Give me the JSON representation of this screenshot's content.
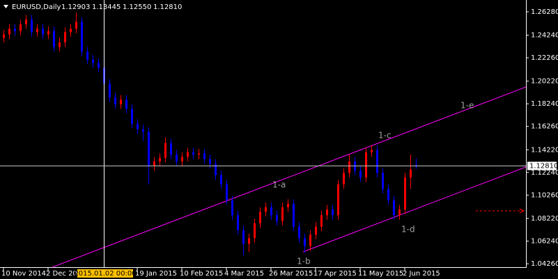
{
  "chart_data": {
    "type": "candlestick",
    "symbol": "EURUSD,Daily",
    "header_values": [
      "1.12903",
      "1.13445",
      "1.12550",
      "1.12810"
    ],
    "up_color": "#ff0000",
    "down_color": "#0000ff",
    "open": [
      1.24,
      1.243,
      1.248,
      1.246,
      1.252,
      1.256,
      1.245,
      1.248,
      1.243,
      1.246,
      1.232,
      1.236,
      1.245,
      1.248,
      1.254,
      1.228,
      1.221,
      1.218,
      1.214,
      1.2,
      1.188,
      1.182,
      1.186,
      1.178,
      1.165,
      1.16,
      1.158,
      1.128,
      1.132,
      1.135,
      1.148,
      1.138,
      1.132,
      1.136,
      1.14,
      1.138,
      1.139,
      1.134,
      1.13,
      1.12,
      1.112,
      1.098,
      1.085,
      1.072,
      1.06,
      1.065,
      1.078,
      1.088,
      1.092,
      1.085,
      1.08,
      1.092,
      1.095,
      1.075,
      1.065,
      1.058,
      1.068,
      1.075,
      1.085,
      1.09,
      1.085,
      1.112,
      1.122,
      1.132,
      1.124,
      1.118,
      1.14,
      1.142,
      1.122,
      1.108,
      1.098,
      1.085,
      1.09,
      1.118,
      1.12903
    ],
    "high": [
      1.247,
      1.252,
      1.252,
      1.256,
      1.26,
      1.26,
      1.252,
      1.252,
      1.25,
      1.25,
      1.24,
      1.249,
      1.252,
      1.262,
      1.258,
      1.232,
      1.225,
      1.222,
      1.218,
      1.204,
      1.192,
      1.19,
      1.19,
      1.182,
      1.169,
      1.164,
      1.162,
      1.136,
      1.139,
      1.153,
      1.152,
      1.142,
      1.14,
      1.144,
      1.144,
      1.143,
      1.143,
      1.138,
      1.134,
      1.124,
      1.116,
      1.102,
      1.089,
      1.076,
      1.069,
      1.082,
      1.092,
      1.096,
      1.096,
      1.089,
      1.096,
      1.099,
      1.099,
      1.079,
      1.069,
      1.072,
      1.079,
      1.089,
      1.094,
      1.094,
      1.116,
      1.126,
      1.138,
      1.136,
      1.128,
      1.144,
      1.146,
      1.146,
      1.126,
      1.112,
      1.102,
      1.094,
      1.122,
      1.138,
      1.13445
    ],
    "low": [
      1.236,
      1.239,
      1.242,
      1.242,
      1.248,
      1.241,
      1.241,
      1.239,
      1.239,
      1.228,
      1.228,
      1.232,
      1.241,
      1.244,
      1.224,
      1.217,
      1.214,
      1.21,
      1.196,
      1.184,
      1.178,
      1.178,
      1.174,
      1.161,
      1.156,
      1.15,
      1.112,
      1.124,
      1.128,
      1.131,
      1.134,
      1.128,
      1.128,
      1.132,
      1.134,
      1.134,
      1.13,
      1.126,
      1.116,
      1.108,
      1.094,
      1.081,
      1.068,
      1.05,
      1.053,
      1.061,
      1.074,
      1.084,
      1.081,
      1.076,
      1.076,
      1.088,
      1.071,
      1.061,
      1.052,
      1.054,
      1.064,
      1.071,
      1.081,
      1.081,
      1.081,
      1.108,
      1.118,
      1.12,
      1.114,
      1.114,
      1.136,
      1.118,
      1.104,
      1.094,
      1.081,
      1.081,
      1.086,
      1.108,
      1.1255
    ],
    "close": [
      1.243,
      1.248,
      1.246,
      1.252,
      1.256,
      1.245,
      1.248,
      1.243,
      1.246,
      1.232,
      1.236,
      1.245,
      1.248,
      1.254,
      1.228,
      1.221,
      1.218,
      1.214,
      1.2,
      1.188,
      1.182,
      1.186,
      1.178,
      1.165,
      1.16,
      1.158,
      1.128,
      1.132,
      1.135,
      1.148,
      1.138,
      1.132,
      1.136,
      1.14,
      1.138,
      1.139,
      1.134,
      1.13,
      1.12,
      1.112,
      1.098,
      1.085,
      1.072,
      1.06,
      1.065,
      1.078,
      1.088,
      1.092,
      1.085,
      1.08,
      1.092,
      1.095,
      1.075,
      1.065,
      1.058,
      1.068,
      1.075,
      1.085,
      1.09,
      1.085,
      1.112,
      1.122,
      1.132,
      1.124,
      1.118,
      1.14,
      1.142,
      1.122,
      1.108,
      1.098,
      1.085,
      1.09,
      1.118,
      1.125,
      1.1281
    ],
    "ylim": [
      1.039,
      1.2731
    ],
    "yticks": [
      {
        "value": 1.2628,
        "label": "1.26280"
      },
      {
        "value": 1.2424,
        "label": "1.24240"
      },
      {
        "value": 1.2226,
        "label": "1.22260"
      },
      {
        "value": 1.2022,
        "label": "1.20220"
      },
      {
        "value": 1.1824,
        "label": "1.18240"
      },
      {
        "value": 1.1626,
        "label": "1.16260"
      },
      {
        "value": 1.1422,
        "label": "1.14220"
      },
      {
        "value": 1.1224,
        "label": "1.12240"
      },
      {
        "value": 1.1026,
        "label": "1.10260"
      },
      {
        "value": 1.0822,
        "label": "1.08220"
      },
      {
        "value": 1.0624,
        "label": "1.06240"
      },
      {
        "value": 1.0426,
        "label": "1.04260"
      }
    ],
    "xticks": [
      {
        "value": 0,
        "label": "10 Nov 2014"
      },
      {
        "value": 8,
        "label": "2 Dec 2014"
      },
      {
        "value": 24,
        "label": "19 Jan 2015"
      },
      {
        "value": 32,
        "label": "10 Feb 2015"
      },
      {
        "value": 40,
        "label": "4 Mar 2015"
      },
      {
        "value": 48,
        "label": "26 Mar 2015"
      },
      {
        "value": 56,
        "label": "17 Apr 2015"
      },
      {
        "value": 64,
        "label": "11 May 2015"
      },
      {
        "value": 72,
        "label": "2 Jun 2015"
      }
    ],
    "crosshair": {
      "value": 18,
      "label": "2015.01.02 00:00"
    },
    "bid": {
      "value": 1.1281,
      "label": "1.12810"
    },
    "annotations": [
      "1-a",
      "1-b",
      "1-c",
      "1-d",
      "1-e"
    ]
  }
}
